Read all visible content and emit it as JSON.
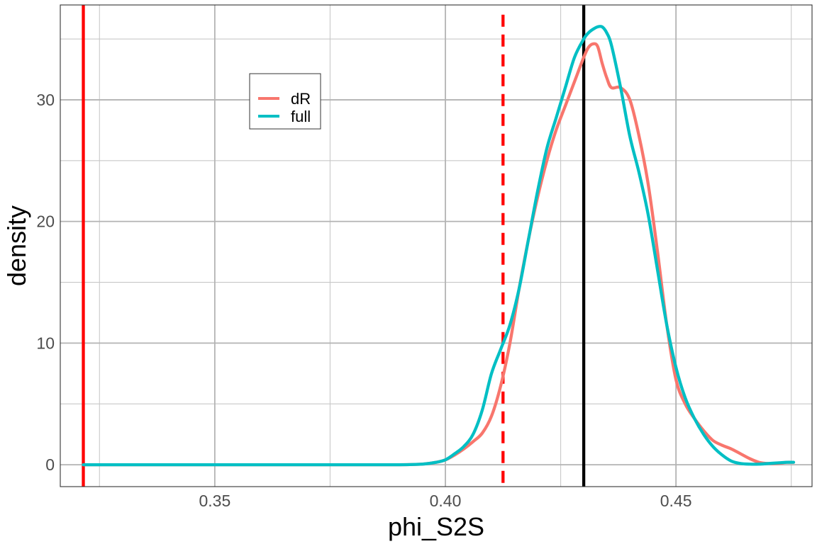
{
  "chart_data": {
    "type": "line",
    "title": "",
    "xlabel": "phi_S2S",
    "ylabel": "density",
    "xlim": [
      0.3165,
      0.4795
    ],
    "ylim": [
      -1.8,
      37.8
    ],
    "x_ticks": [
      0.35,
      0.4,
      0.45
    ],
    "x_tick_labels": [
      "0.35",
      "0.40",
      "0.45"
    ],
    "y_ticks": [
      0,
      10,
      20,
      30
    ],
    "y_tick_labels": [
      "0",
      "10",
      "20",
      "30"
    ],
    "grid": true,
    "legend_position": "top-left inside",
    "series": [
      {
        "name": "dR",
        "color": "#F8766D",
        "x": [
          0.3215,
          0.33,
          0.34,
          0.35,
          0.36,
          0.37,
          0.38,
          0.39,
          0.395,
          0.398,
          0.4,
          0.402,
          0.404,
          0.406,
          0.408,
          0.41,
          0.412,
          0.414,
          0.416,
          0.418,
          0.42,
          0.422,
          0.424,
          0.426,
          0.428,
          0.43,
          0.431,
          0.432,
          0.433,
          0.434,
          0.435,
          0.436,
          0.438,
          0.44,
          0.442,
          0.444,
          0.446,
          0.448,
          0.45,
          0.452,
          0.454,
          0.456,
          0.458,
          0.46,
          0.462,
          0.464,
          0.466,
          0.468,
          0.47,
          0.472,
          0.474,
          0.4755
        ],
        "y": [
          0,
          0,
          0,
          0,
          0,
          0,
          0,
          0,
          0.05,
          0.2,
          0.4,
          0.8,
          1.3,
          1.9,
          2.6,
          4.0,
          6.5,
          10.0,
          14.5,
          18.5,
          22.0,
          25.0,
          27.5,
          29.5,
          31.5,
          33.5,
          34.3,
          34.6,
          34.4,
          33.0,
          31.8,
          31.0,
          31.0,
          30.0,
          27.0,
          23.0,
          17.5,
          11.5,
          7.0,
          5.0,
          3.8,
          2.8,
          2.0,
          1.6,
          1.3,
          0.9,
          0.5,
          0.2,
          0.1,
          0.1,
          0.2,
          0.2
        ]
      },
      {
        "name": "full",
        "color": "#00BFC4",
        "x": [
          0.3215,
          0.33,
          0.34,
          0.35,
          0.36,
          0.37,
          0.38,
          0.39,
          0.395,
          0.398,
          0.4,
          0.402,
          0.404,
          0.406,
          0.408,
          0.41,
          0.412,
          0.414,
          0.416,
          0.418,
          0.42,
          0.422,
          0.424,
          0.426,
          0.428,
          0.43,
          0.431,
          0.432,
          0.433,
          0.434,
          0.435,
          0.436,
          0.438,
          0.44,
          0.442,
          0.444,
          0.446,
          0.448,
          0.45,
          0.452,
          0.454,
          0.456,
          0.458,
          0.46,
          0.462,
          0.464,
          0.466,
          0.468,
          0.47,
          0.472,
          0.474,
          0.4755
        ],
        "y": [
          0,
          0,
          0,
          0,
          0,
          0,
          0,
          0,
          0.05,
          0.2,
          0.4,
          0.9,
          1.5,
          2.5,
          4.5,
          7.5,
          9.5,
          11.5,
          14.5,
          18.5,
          22.5,
          26.0,
          28.5,
          31.0,
          33.5,
          35.0,
          35.5,
          35.8,
          36.0,
          36.0,
          35.5,
          34.5,
          31.0,
          27.0,
          24.0,
          20.5,
          16.0,
          11.5,
          8.0,
          5.5,
          3.8,
          2.5,
          1.5,
          0.8,
          0.3,
          0.1,
          0.05,
          0.05,
          0.1,
          0.15,
          0.2,
          0.2
        ]
      }
    ],
    "reference_lines": [
      {
        "x": 0.3215,
        "color": "#FF0000",
        "style": "solid"
      },
      {
        "x": 0.4125,
        "color": "#FF0000",
        "style": "dashed",
        "y_top": 37
      },
      {
        "x": 0.43,
        "color": "#000000",
        "style": "solid"
      }
    ]
  }
}
